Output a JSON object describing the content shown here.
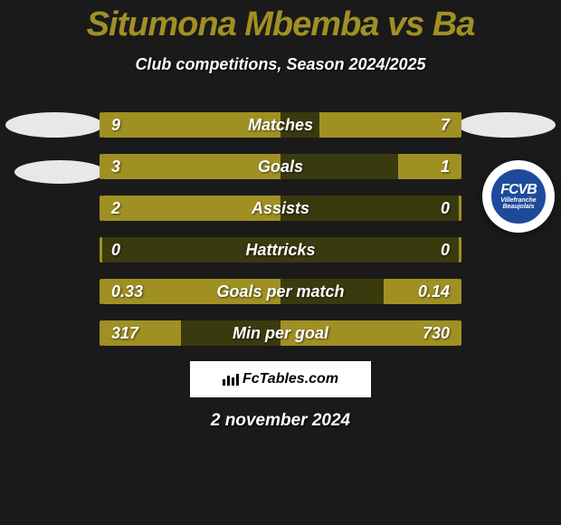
{
  "title": "Situmona Mbemba vs Ba",
  "title_color": "#a09023",
  "subtitle": "Club competitions, Season 2024/2025",
  "date": "2 november 2024",
  "attribution": "FcTables.com",
  "club_badge": {
    "acronym": "FCVB",
    "subtext1": "Villefranche",
    "subtext2": "Beaujolais",
    "bg_color": "#1e4a9b"
  },
  "chart": {
    "type": "horizontal-comparison-bars",
    "track_color": "#3a3a0f",
    "fill_color": "#a09023",
    "border_color": "#a09023",
    "label_color": "#ffffff",
    "rows": [
      {
        "label": "Matches",
        "left_value": "9",
        "right_value": "7",
        "left_pct": 50,
        "right_pct": 39
      },
      {
        "label": "Goals",
        "left_value": "3",
        "right_value": "1",
        "left_pct": 50,
        "right_pct": 17
      },
      {
        "label": "Assists",
        "left_value": "2",
        "right_value": "0",
        "left_pct": 50,
        "right_pct": 0
      },
      {
        "label": "Hattricks",
        "left_value": "0",
        "right_value": "0",
        "left_pct": 0,
        "right_pct": 0
      },
      {
        "label": "Goals per match",
        "left_value": "0.33",
        "right_value": "0.14",
        "left_pct": 50,
        "right_pct": 21
      },
      {
        "label": "Min per goal",
        "left_value": "317",
        "right_value": "730",
        "left_pct": 22,
        "right_pct": 50
      }
    ]
  }
}
